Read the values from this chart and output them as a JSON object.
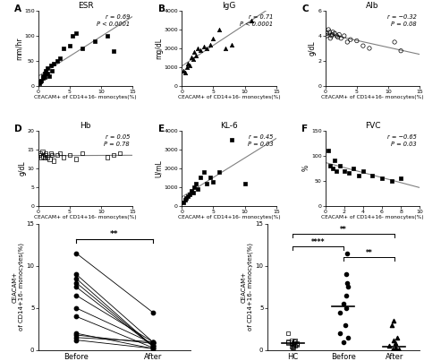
{
  "panels": {
    "A": {
      "title": "ESR",
      "xlabel": "CEACAM+ of CD14+16- monocytes(%)",
      "ylabel": "mm/hr",
      "r": "r = 0.69",
      "p": "P < 0.0001",
      "xlim": [
        0,
        15
      ],
      "ylim": [
        0,
        150
      ],
      "yticks": [
        0,
        50,
        100,
        150
      ],
      "marker": "s",
      "fillstyle": "full",
      "x": [
        0.2,
        0.3,
        0.5,
        0.7,
        0.8,
        1.0,
        1.1,
        1.2,
        1.5,
        1.5,
        1.8,
        2.0,
        2.2,
        2.5,
        3.0,
        3.5,
        4.0,
        5.0,
        5.5,
        6.0,
        7.0,
        9.0,
        11.0,
        12.0
      ],
      "y": [
        5,
        8,
        10,
        15,
        20,
        25,
        18,
        30,
        25,
        35,
        20,
        40,
        30,
        45,
        50,
        55,
        75,
        80,
        100,
        105,
        75,
        90,
        100,
        70
      ]
    },
    "B": {
      "title": "IgG",
      "xlabel": "CEACAM+ of CD14+16- monocytes(%)",
      "ylabel": "mg/dL",
      "r": "r = 0.71",
      "p": "P < 0.0001",
      "xlim": [
        0,
        15
      ],
      "ylim": [
        0,
        4000
      ],
      "yticks": [
        0,
        1000,
        2000,
        3000,
        4000
      ],
      "marker": "^",
      "fillstyle": "full",
      "x": [
        0.2,
        0.5,
        0.8,
        1.0,
        1.2,
        1.5,
        1.8,
        2.0,
        2.2,
        2.5,
        3.0,
        3.5,
        4.0,
        4.5,
        5.0,
        6.0,
        7.0,
        8.0,
        11.0
      ],
      "y": [
        800,
        700,
        1000,
        1200,
        1100,
        1500,
        1400,
        1800,
        1600,
        2000,
        1900,
        2100,
        2000,
        2200,
        2500,
        3000,
        2000,
        2200,
        3500
      ]
    },
    "C": {
      "title": "Alb",
      "xlabel": "CEACAM+ of CD14+16- monocytes(%)",
      "ylabel": "g/dL",
      "r": "r = −0.32",
      "p": "P = 0.08",
      "xlim": [
        0,
        15
      ],
      "ylim": [
        0,
        6
      ],
      "yticks": [
        0,
        2,
        4,
        6
      ],
      "marker": "o",
      "fillstyle": "none",
      "x": [
        0.2,
        0.3,
        0.5,
        0.7,
        0.8,
        1.0,
        1.1,
        1.2,
        1.5,
        1.8,
        2.0,
        2.2,
        2.5,
        3.0,
        3.5,
        4.0,
        5.0,
        6.0,
        7.0,
        11.0,
        12.0
      ],
      "y": [
        4.0,
        4.2,
        4.5,
        4.3,
        3.8,
        4.0,
        4.1,
        4.3,
        4.2,
        4.0,
        3.9,
        4.1,
        3.8,
        4.0,
        3.5,
        3.7,
        3.6,
        3.2,
        3.0,
        3.5,
        2.8
      ]
    },
    "D": {
      "title": "Hb",
      "xlabel": "CEACAM+ of CD14+16- monocytes(%)",
      "ylabel": "g/dL",
      "r": "r = 0.05",
      "p": "P = 0.78",
      "xlim": [
        0,
        15
      ],
      "ylim": [
        0,
        20
      ],
      "yticks": [
        0,
        5,
        10,
        15,
        20
      ],
      "marker": "s",
      "fillstyle": "none",
      "x": [
        0.2,
        0.3,
        0.5,
        0.7,
        0.8,
        1.0,
        1.1,
        1.2,
        1.5,
        1.8,
        2.0,
        2.2,
        2.5,
        3.0,
        3.5,
        4.0,
        5.0,
        6.0,
        7.0,
        11.0,
        12.0,
        13.0
      ],
      "y": [
        13.5,
        14.0,
        13.0,
        14.5,
        13.2,
        12.8,
        13.5,
        14.0,
        13.0,
        12.5,
        14.0,
        13.5,
        12.0,
        13.5,
        14.0,
        13.0,
        13.5,
        12.5,
        14.0,
        13.0,
        13.5,
        14.0
      ]
    },
    "E": {
      "title": "KL-6",
      "xlabel": "CEACAM+ of CD14+16- monocytes(%)",
      "ylabel": "U/mL",
      "r": "r = 0.45",
      "p": "P = 0.03",
      "xlim": [
        0,
        15
      ],
      "ylim": [
        0,
        4000
      ],
      "yticks": [
        0,
        1000,
        2000,
        3000,
        4000
      ],
      "marker": "s",
      "fillstyle": "full",
      "x": [
        0.3,
        0.5,
        0.7,
        1.0,
        1.2,
        1.5,
        1.8,
        2.0,
        2.2,
        2.5,
        3.0,
        3.5,
        4.0,
        4.5,
        5.0,
        6.0,
        8.0,
        10.0
      ],
      "y": [
        200,
        300,
        400,
        500,
        600,
        800,
        700,
        1000,
        1200,
        900,
        1500,
        1800,
        1200,
        1500,
        1300,
        1800,
        3500,
        1200
      ]
    },
    "F": {
      "title": "FVC",
      "xlabel": "CEACAM+ of CD14+16- monocytes(%)",
      "ylabel": "%",
      "r": "r = −0.65",
      "p": "P = 0.03",
      "xlim": [
        0,
        10
      ],
      "ylim": [
        0,
        150
      ],
      "yticks": [
        0,
        50,
        100,
        150
      ],
      "marker": "s",
      "fillstyle": "full",
      "x": [
        0.3,
        0.5,
        0.8,
        1.0,
        1.2,
        1.5,
        2.0,
        2.5,
        3.0,
        3.5,
        4.0,
        5.0,
        6.0,
        7.0,
        8.0
      ],
      "y": [
        110,
        80,
        75,
        90,
        70,
        80,
        70,
        65,
        75,
        60,
        70,
        60,
        55,
        50,
        55
      ]
    }
  },
  "panel_G1": {
    "ylabel": "CEACAM+\nof CD14+16- monocytes(%)",
    "xlabels": [
      "Before",
      "After"
    ],
    "ylim": [
      0,
      15
    ],
    "yticks": [
      0,
      5,
      10,
      15
    ],
    "before": [
      11.5,
      9.0,
      8.5,
      8.0,
      7.5,
      6.5,
      5.0,
      4.0,
      2.0,
      1.8,
      1.5,
      1.2
    ],
    "after": [
      4.5,
      1.0,
      0.5,
      0.5,
      0.5,
      1.0,
      0.8,
      0.3,
      0.2,
      0.8,
      1.0,
      0.2
    ]
  },
  "panel_G2": {
    "ylabel": "CEACAM+\nof CD14+16- monocytes(%)",
    "xlabels": [
      "HC",
      "Before",
      "After"
    ],
    "ylim": [
      0,
      15
    ],
    "yticks": [
      0,
      5,
      10,
      15
    ],
    "HC_y": [
      0.3,
      0.5,
      0.8,
      0.7,
      0.9,
      1.0,
      0.4,
      0.6,
      0.8,
      1.1,
      1.2,
      0.3,
      0.5,
      0.7,
      0.9,
      1.0,
      2.0
    ],
    "Before_y": [
      11.5,
      9.0,
      8.0,
      7.5,
      6.5,
      5.5,
      5.0,
      4.5,
      3.0,
      2.0,
      1.5,
      1.0
    ],
    "After_y": [
      3.5,
      3.0,
      1.5,
      1.2,
      0.8,
      0.5,
      0.3,
      0.2,
      0.2,
      0.1,
      0.1,
      0.05
    ]
  }
}
